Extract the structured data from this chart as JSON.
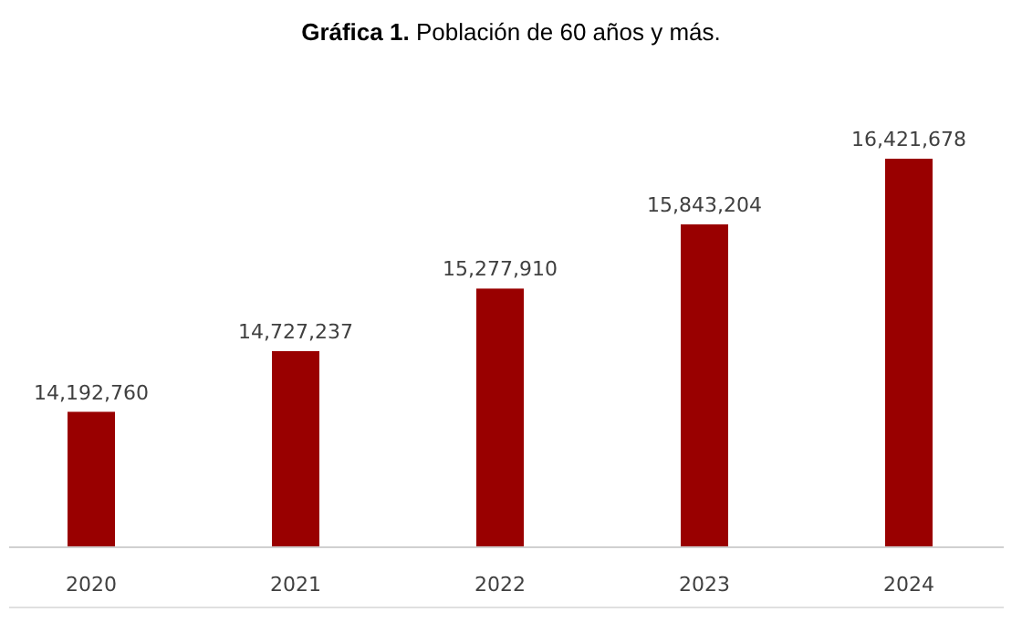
{
  "chart_data": {
    "type": "bar",
    "title": "Gráfica 1. Población de 60 años y más.",
    "categories": [
      "2020",
      "2021",
      "2022",
      "2023",
      "2024"
    ],
    "values": [
      14192760,
      14727237,
      15277910,
      15843204,
      16421678
    ],
    "value_labels": [
      "14,192,760",
      "14,727,237",
      "15,277,910",
      "15,843,204",
      "16,421,678"
    ],
    "color": "#990000",
    "ylim": [
      13000000,
      16421678
    ],
    "tick_labels": "x"
  }
}
